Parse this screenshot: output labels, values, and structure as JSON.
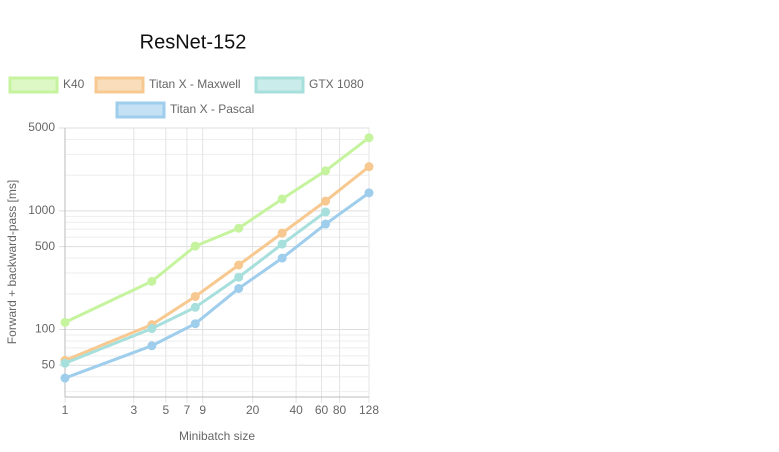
{
  "chart_data": {
    "type": "line",
    "title": "ResNet-152",
    "x_label": "Minibatch size",
    "y_label": "Forward + backward-pass [ms]",
    "x": [
      1,
      4,
      8,
      16,
      32,
      64,
      128
    ],
    "series": [
      {
        "name": "K40",
        "color": "#c6f39e",
        "values": [
          115,
          255,
          505,
          715,
          1260,
          2180,
          4140
        ]
      },
      {
        "name": "Titan X - Maxwell",
        "color": "#f7c88f",
        "values": [
          55,
          110,
          190,
          350,
          650,
          1210,
          2360
        ]
      },
      {
        "name": "GTX 1080",
        "color": "#a6dfdc",
        "values": [
          52,
          102,
          154,
          276,
          525,
          980,
          null
        ]
      },
      {
        "name": "Titan X - Pascal",
        "color": "#9fcdec",
        "values": [
          39,
          73,
          112,
          222,
          400,
          775,
          1420
        ]
      }
    ],
    "xscale": "log",
    "yscale": "log",
    "xlim": [
      1,
      128
    ],
    "ylim": [
      27,
      5000
    ],
    "xticks": [
      1,
      3,
      5,
      7,
      9,
      20,
      40,
      60,
      80,
      128
    ],
    "yticks": [
      50,
      100,
      500,
      1000,
      5000
    ],
    "y_minor_ticks": [
      30,
      40,
      60,
      70,
      80,
      90,
      200,
      300,
      400,
      600,
      700,
      800,
      900,
      2000,
      3000,
      4000
    ],
    "grid": true
  }
}
